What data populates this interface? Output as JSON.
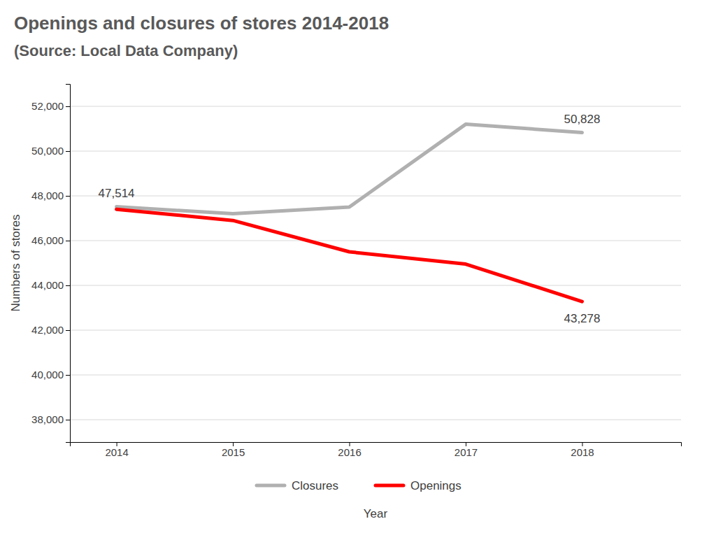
{
  "chart_data": {
    "type": "line",
    "title": "Openings and closures of stores 2014-2018",
    "subtitle": "(Source: Local Data Company)",
    "xlabel": "Year",
    "ylabel": "Numbers of stores",
    "x": [
      2014,
      2015,
      2016,
      2017,
      2018
    ],
    "series": [
      {
        "name": "Closures",
        "color": "#b0b0b0",
        "values": [
          47514,
          47200,
          47500,
          51200,
          50828
        ],
        "value_labels": [
          "47,514",
          null,
          null,
          null,
          "50,828"
        ]
      },
      {
        "name": "Openings",
        "color": "#ff0000",
        "values": [
          47400,
          46900,
          45500,
          44950,
          43278
        ],
        "value_labels": [
          null,
          null,
          null,
          null,
          "43,278"
        ]
      }
    ],
    "xlim": [
      2013.6,
      2018.85
    ],
    "xticks": [
      2014,
      2015,
      2016,
      2017,
      2018
    ],
    "ylim": [
      37000,
      53000
    ],
    "yticks": [
      {
        "value": 38000,
        "label": "38,000"
      },
      {
        "value": 40000,
        "label": "40,000"
      },
      {
        "value": 42000,
        "label": "42,000"
      },
      {
        "value": 44000,
        "label": "44,000"
      },
      {
        "value": 46000,
        "label": "46,000"
      },
      {
        "value": 48000,
        "label": "48,000"
      },
      {
        "value": 50000,
        "label": "50,000"
      },
      {
        "value": 52000,
        "label": "52,000"
      }
    ],
    "grid": true,
    "legend": "bottom",
    "data_labels": true
  }
}
